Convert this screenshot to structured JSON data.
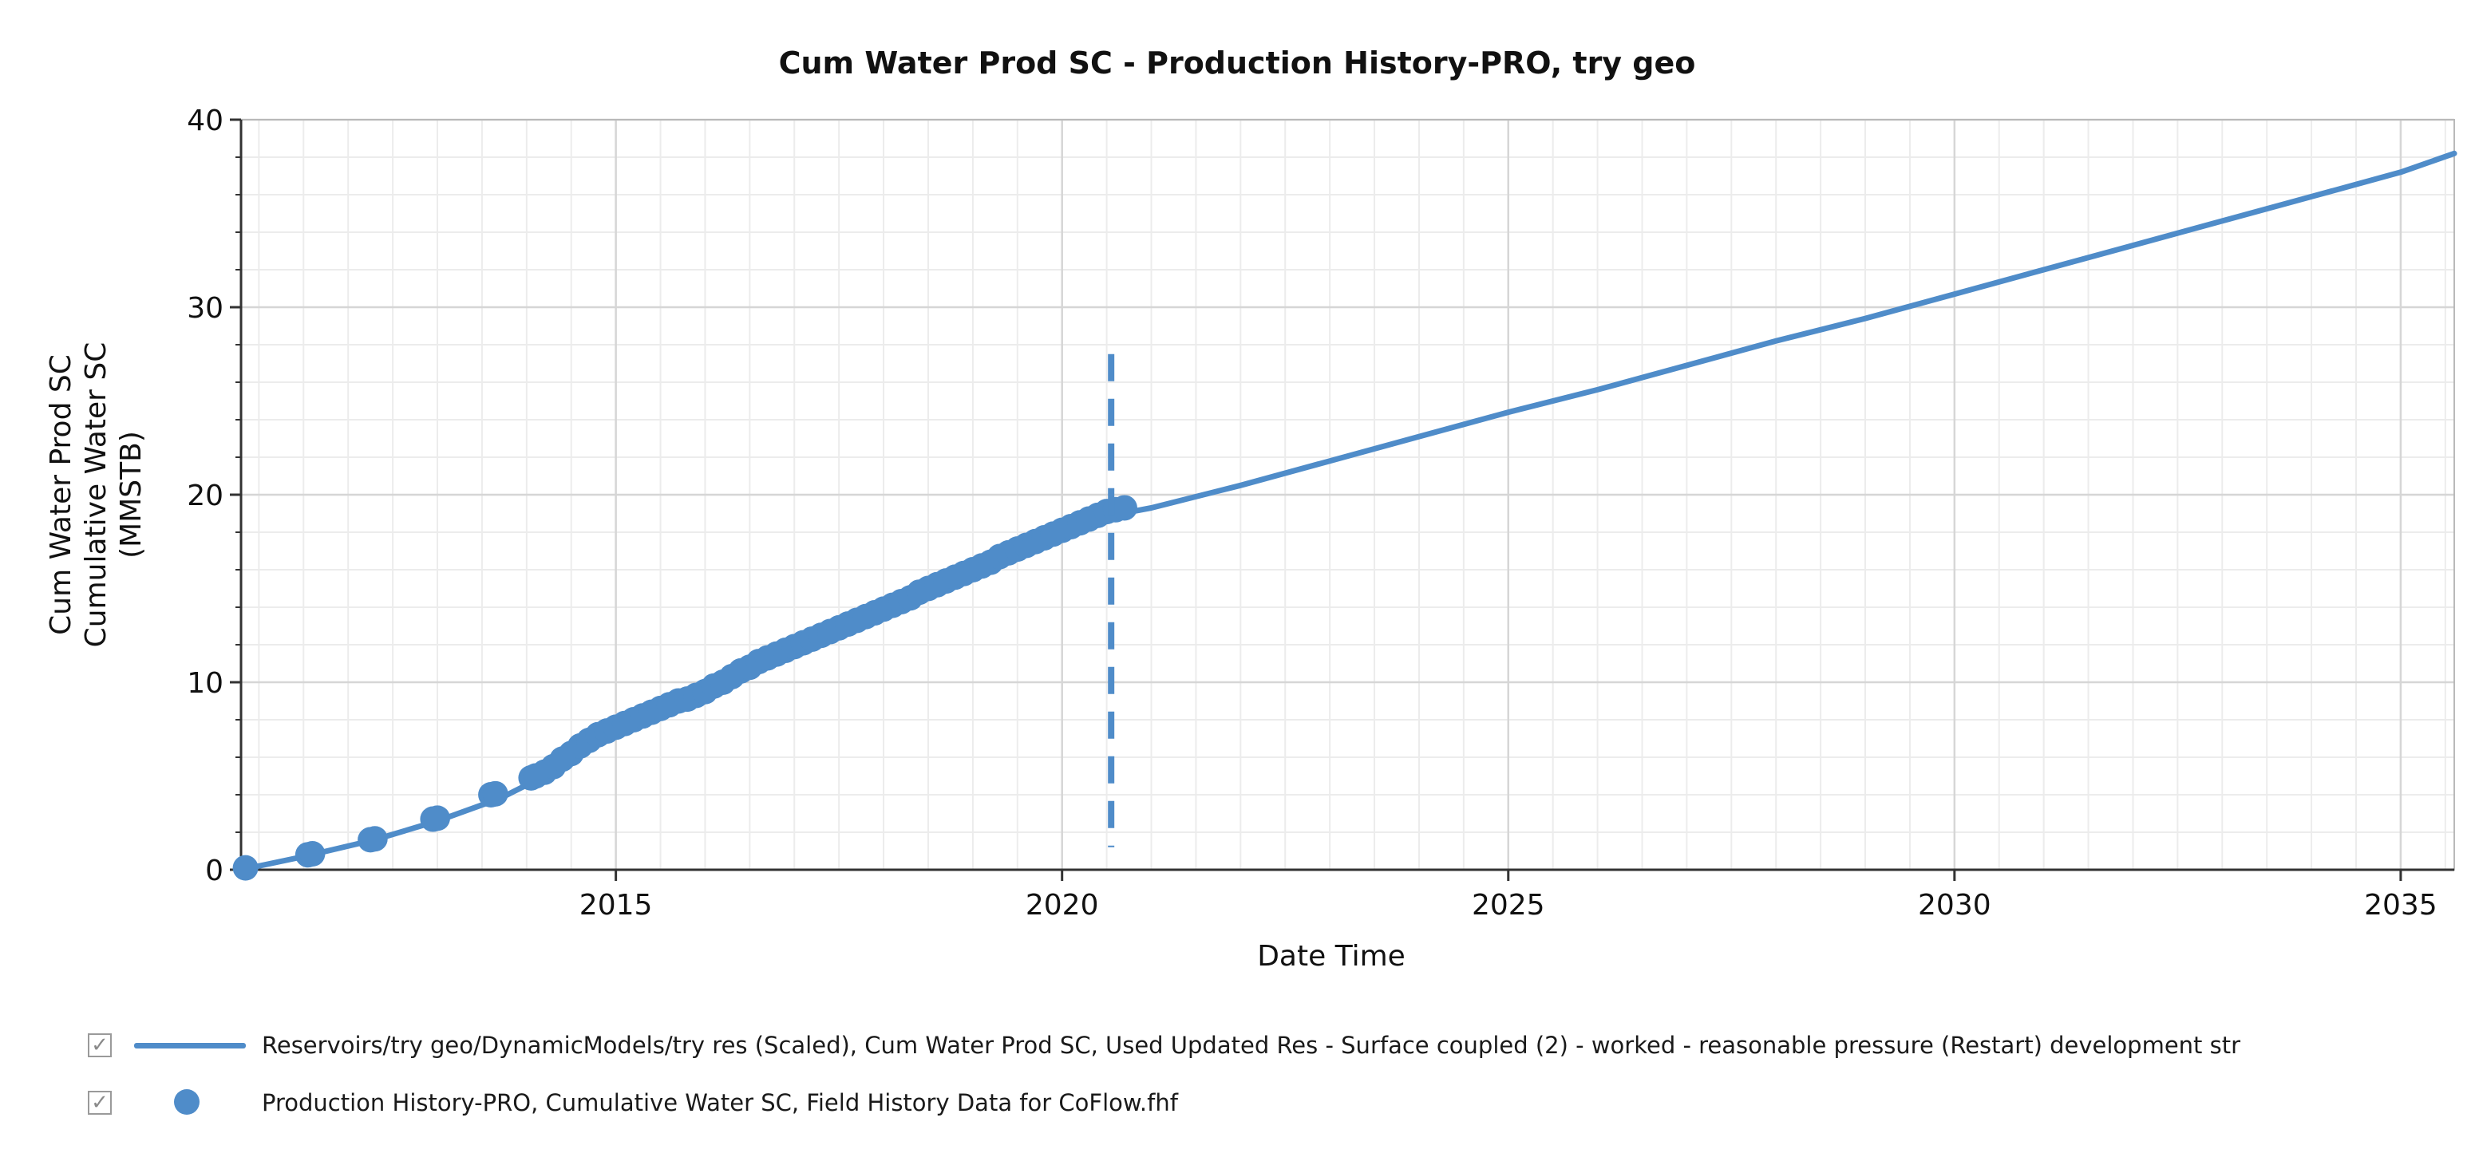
{
  "chart_data": {
    "type": "line",
    "title": "Cum Water Prod SC - Production History-PRO, try geo",
    "xlabel": "Date Time",
    "ylabel_lines": [
      "Cum Water Prod SC",
      "Cumulative Water SC",
      "(MMSTB)"
    ],
    "xlim": [
      2010.8,
      2035.6
    ],
    "ylim": [
      0,
      40
    ],
    "x_ticks": [
      2015,
      2020,
      2025,
      2030,
      2035
    ],
    "x_tick_labels": [
      "2015",
      "2020",
      "2025",
      "2030",
      "2035"
    ],
    "y_ticks": [
      0,
      10,
      20,
      30,
      40
    ],
    "y_tick_labels": [
      "0",
      "10",
      "20",
      "30",
      "40"
    ],
    "x_minor_step": 0.5,
    "y_minor_step": 2,
    "grid": true,
    "history_end_marker": {
      "x": 2020.55,
      "y_range": [
        1.2,
        27.5
      ],
      "style": "dashed"
    },
    "series": [
      {
        "name": "Reservoirs/try geo/DynamicModels/try res (Scaled), Cum Water Prod SC, Used Updated Res - Surface coupled (2) - worked - reasonable pressure (Restart) development str",
        "kind": "line",
        "color": "#4f8cc9",
        "points": [
          [
            2010.8,
            0.0
          ],
          [
            2011.5,
            0.7
          ],
          [
            2012.3,
            1.6
          ],
          [
            2013.0,
            2.6
          ],
          [
            2013.7,
            3.8
          ],
          [
            2014.2,
            5.0
          ],
          [
            2014.6,
            6.3
          ],
          [
            2015.0,
            7.5
          ],
          [
            2015.5,
            8.5
          ],
          [
            2016.0,
            9.5
          ],
          [
            2016.5,
            10.8
          ],
          [
            2017.0,
            11.9
          ],
          [
            2017.5,
            12.8
          ],
          [
            2018.0,
            13.9
          ],
          [
            2018.5,
            15.0
          ],
          [
            2019.0,
            16.0
          ],
          [
            2019.5,
            17.1
          ],
          [
            2020.0,
            18.1
          ],
          [
            2020.55,
            18.9
          ],
          [
            2021.0,
            19.3
          ],
          [
            2022.0,
            20.5
          ],
          [
            2023.0,
            21.8
          ],
          [
            2024.0,
            23.1
          ],
          [
            2025.0,
            24.4
          ],
          [
            2026.0,
            25.6
          ],
          [
            2027.0,
            26.9
          ],
          [
            2028.0,
            28.2
          ],
          [
            2029.0,
            29.4
          ],
          [
            2030.0,
            30.7
          ],
          [
            2031.0,
            32.0
          ],
          [
            2032.0,
            33.3
          ],
          [
            2033.0,
            34.6
          ],
          [
            2034.0,
            35.9
          ],
          [
            2035.0,
            37.2
          ],
          [
            2035.6,
            38.2
          ]
        ]
      },
      {
        "name": "Production History-PRO, Cumulative Water SC, Field History Data for CoFlow.fhf",
        "kind": "scatter",
        "color": "#4f8cc9",
        "points": [
          [
            2010.85,
            0.1
          ],
          [
            2011.55,
            0.8
          ],
          [
            2011.6,
            0.85
          ],
          [
            2012.25,
            1.6
          ],
          [
            2012.3,
            1.65
          ],
          [
            2012.95,
            2.7
          ],
          [
            2013.0,
            2.75
          ],
          [
            2013.6,
            4.0
          ],
          [
            2013.65,
            4.05
          ],
          [
            2014.05,
            4.9
          ],
          [
            2014.1,
            5.0
          ],
          [
            2014.2,
            5.2
          ],
          [
            2014.3,
            5.5
          ],
          [
            2014.4,
            5.9
          ],
          [
            2014.5,
            6.2
          ],
          [
            2014.6,
            6.6
          ],
          [
            2014.7,
            6.9
          ],
          [
            2014.8,
            7.2
          ],
          [
            2014.9,
            7.4
          ],
          [
            2015.0,
            7.6
          ],
          [
            2015.1,
            7.8
          ],
          [
            2015.2,
            8.0
          ],
          [
            2015.3,
            8.2
          ],
          [
            2015.4,
            8.4
          ],
          [
            2015.5,
            8.6
          ],
          [
            2015.6,
            8.8
          ],
          [
            2015.7,
            9.0
          ],
          [
            2015.8,
            9.1
          ],
          [
            2015.9,
            9.3
          ],
          [
            2016.0,
            9.5
          ],
          [
            2016.1,
            9.8
          ],
          [
            2016.2,
            10.0
          ],
          [
            2016.3,
            10.3
          ],
          [
            2016.4,
            10.6
          ],
          [
            2016.5,
            10.8
          ],
          [
            2016.6,
            11.1
          ],
          [
            2016.7,
            11.3
          ],
          [
            2016.8,
            11.5
          ],
          [
            2016.9,
            11.7
          ],
          [
            2017.0,
            11.9
          ],
          [
            2017.1,
            12.1
          ],
          [
            2017.2,
            12.3
          ],
          [
            2017.3,
            12.5
          ],
          [
            2017.4,
            12.7
          ],
          [
            2017.5,
            12.9
          ],
          [
            2017.6,
            13.1
          ],
          [
            2017.7,
            13.3
          ],
          [
            2017.8,
            13.5
          ],
          [
            2017.9,
            13.7
          ],
          [
            2018.0,
            13.9
          ],
          [
            2018.1,
            14.1
          ],
          [
            2018.2,
            14.3
          ],
          [
            2018.3,
            14.5
          ],
          [
            2018.4,
            14.8
          ],
          [
            2018.5,
            15.0
          ],
          [
            2018.6,
            15.2
          ],
          [
            2018.7,
            15.4
          ],
          [
            2018.8,
            15.6
          ],
          [
            2018.9,
            15.8
          ],
          [
            2019.0,
            16.0
          ],
          [
            2019.1,
            16.2
          ],
          [
            2019.2,
            16.4
          ],
          [
            2019.3,
            16.7
          ],
          [
            2019.4,
            16.9
          ],
          [
            2019.5,
            17.1
          ],
          [
            2019.6,
            17.3
          ],
          [
            2019.7,
            17.5
          ],
          [
            2019.8,
            17.7
          ],
          [
            2019.9,
            17.9
          ],
          [
            2020.0,
            18.1
          ],
          [
            2020.1,
            18.3
          ],
          [
            2020.2,
            18.5
          ],
          [
            2020.3,
            18.7
          ],
          [
            2020.4,
            18.9
          ],
          [
            2020.5,
            19.1
          ],
          [
            2020.6,
            19.2
          ],
          [
            2020.7,
            19.3
          ]
        ]
      }
    ]
  },
  "legend": {
    "items": [
      {
        "check": "✓",
        "marker": "line",
        "label": "Reservoirs/try geo/DynamicModels/try res (Scaled), Cum Water Prod SC, Used Updated Res - Surface coupled (2) - worked - reasonable pressure (Restart) development str"
      },
      {
        "check": "✓",
        "marker": "dot",
        "label": "Production History-PRO, Cumulative Water SC, Field History Data for CoFlow.fhf"
      }
    ]
  },
  "colors": {
    "series": "#4f8cc9",
    "grid_major": "#d6d6d6",
    "grid_minor": "#ececec",
    "axis": "#333333"
  }
}
